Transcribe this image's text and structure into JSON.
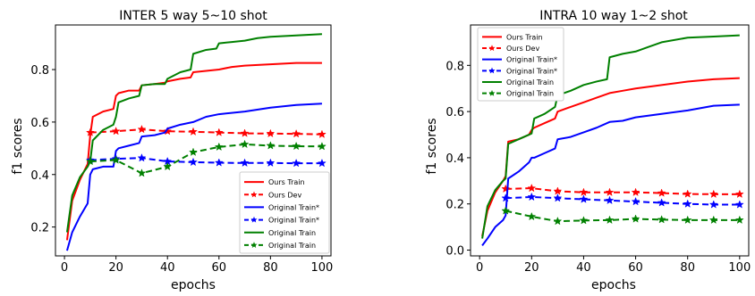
{
  "chart_data": [
    {
      "type": "line",
      "title": "INTER 5 way 5~10 shot",
      "xlabel": "epochs",
      "ylabel": "f1 scores",
      "xlim": [
        -3.5,
        103.5
      ],
      "ylim": [
        0.09,
        0.97
      ],
      "xticks": [
        0,
        20,
        40,
        60,
        80,
        100
      ],
      "yticks": [
        0.2,
        0.4,
        0.6,
        0.8
      ],
      "xtick_labels": [
        "0",
        "20",
        "40",
        "60",
        "80",
        "100"
      ],
      "ytick_labels": [
        "0.2",
        "0.4",
        "0.6",
        "0.8"
      ],
      "legend_position": "lower-right",
      "series": [
        {
          "name": "Ours Train",
          "color": "#ff0000",
          "style": "solid",
          "x": [
            1,
            3,
            6,
            9,
            10,
            11,
            15,
            19,
            20,
            21,
            25,
            29,
            30,
            35,
            39,
            40,
            45,
            49,
            50,
            55,
            60,
            65,
            70,
            80,
            90,
            100
          ],
          "y": [
            0.15,
            0.3,
            0.38,
            0.44,
            0.55,
            0.62,
            0.64,
            0.65,
            0.7,
            0.71,
            0.72,
            0.72,
            0.74,
            0.745,
            0.75,
            0.755,
            0.765,
            0.77,
            0.79,
            0.795,
            0.8,
            0.81,
            0.815,
            0.82,
            0.825,
            0.825
          ]
        },
        {
          "name": "Ours Dev",
          "color": "#ff0000",
          "style": "dashed",
          "marker": "star",
          "x": [
            10,
            20,
            30,
            40,
            50,
            60,
            70,
            80,
            90,
            100
          ],
          "y": [
            0.56,
            0.565,
            0.572,
            0.565,
            0.563,
            0.56,
            0.557,
            0.556,
            0.555,
            0.553
          ]
        },
        {
          "name": "Original Train*",
          "color": "#0000ff",
          "style": "solid",
          "x": [
            1,
            3,
            6,
            9,
            10,
            11,
            15,
            19,
            20,
            21,
            25,
            29,
            30,
            35,
            39,
            40,
            45,
            50,
            55,
            60,
            70,
            80,
            90,
            100
          ],
          "y": [
            0.11,
            0.18,
            0.24,
            0.29,
            0.4,
            0.42,
            0.43,
            0.43,
            0.49,
            0.5,
            0.51,
            0.52,
            0.545,
            0.55,
            0.56,
            0.575,
            0.59,
            0.6,
            0.62,
            0.63,
            0.64,
            0.655,
            0.665,
            0.67
          ]
        },
        {
          "name": "Original Train*",
          "color": "#0000ff",
          "style": "dashed",
          "marker": "star",
          "x": [
            10,
            20,
            30,
            40,
            50,
            60,
            70,
            80,
            90,
            100
          ],
          "y": [
            0.455,
            0.46,
            0.463,
            0.45,
            0.447,
            0.445,
            0.444,
            0.444,
            0.443,
            0.443
          ]
        },
        {
          "name": "Original Train",
          "color": "#008000",
          "style": "solid",
          "x": [
            1,
            3,
            6,
            9,
            10,
            11,
            15,
            19,
            20,
            21,
            25,
            29,
            30,
            35,
            39,
            40,
            45,
            49,
            50,
            55,
            59,
            60,
            65,
            70,
            75,
            80,
            90,
            100
          ],
          "y": [
            0.18,
            0.32,
            0.39,
            0.43,
            0.45,
            0.53,
            0.57,
            0.59,
            0.62,
            0.675,
            0.69,
            0.7,
            0.74,
            0.745,
            0.745,
            0.765,
            0.79,
            0.8,
            0.86,
            0.875,
            0.88,
            0.9,
            0.905,
            0.91,
            0.92,
            0.925,
            0.93,
            0.935
          ]
        },
        {
          "name": "Original Train",
          "color": "#008000",
          "style": "dashed",
          "marker": "star",
          "x": [
            10,
            20,
            30,
            40,
            50,
            60,
            70,
            80,
            90,
            100
          ],
          "y": [
            0.45,
            0.455,
            0.405,
            0.43,
            0.485,
            0.505,
            0.515,
            0.51,
            0.508,
            0.507
          ]
        }
      ]
    },
    {
      "type": "line",
      "title": "INTRA 10 way 1~2 shot",
      "xlabel": "epochs",
      "ylabel": "f1 scores",
      "xlim": [
        -3.5,
        103.5
      ],
      "ylim": [
        -0.025,
        0.975
      ],
      "xticks": [
        0,
        20,
        40,
        60,
        80,
        100
      ],
      "yticks": [
        0.0,
        0.2,
        0.4,
        0.6,
        0.8
      ],
      "xtick_labels": [
        "0",
        "20",
        "40",
        "60",
        "80",
        "100"
      ],
      "ytick_labels": [
        "0.0",
        "0.2",
        "0.4",
        "0.6",
        "0.8"
      ],
      "legend_position": "upper-left",
      "series": [
        {
          "name": "Ours Train",
          "color": "#ff0000",
          "style": "solid",
          "x": [
            1,
            3,
            6,
            9,
            10,
            11,
            15,
            19,
            20,
            21,
            25,
            29,
            30,
            35,
            40,
            45,
            50,
            55,
            60,
            70,
            80,
            90,
            100
          ],
          "y": [
            0.06,
            0.17,
            0.25,
            0.3,
            0.32,
            0.47,
            0.48,
            0.5,
            0.52,
            0.53,
            0.55,
            0.57,
            0.6,
            0.62,
            0.64,
            0.66,
            0.68,
            0.69,
            0.7,
            0.715,
            0.73,
            0.74,
            0.745
          ]
        },
        {
          "name": "Ours Dev",
          "color": "#ff0000",
          "style": "dashed",
          "marker": "star",
          "x": [
            10,
            20,
            30,
            40,
            50,
            60,
            70,
            80,
            90,
            100
          ],
          "y": [
            0.265,
            0.268,
            0.255,
            0.25,
            0.25,
            0.25,
            0.247,
            0.243,
            0.242,
            0.242
          ]
        },
        {
          "name": "Original Train*",
          "color": "#0000ff",
          "style": "solid",
          "x": [
            1,
            3,
            6,
            9,
            10,
            11,
            15,
            19,
            20,
            21,
            25,
            29,
            30,
            35,
            40,
            45,
            50,
            55,
            60,
            70,
            80,
            90,
            100
          ],
          "y": [
            0.02,
            0.05,
            0.1,
            0.13,
            0.15,
            0.31,
            0.34,
            0.38,
            0.4,
            0.4,
            0.42,
            0.44,
            0.48,
            0.49,
            0.51,
            0.53,
            0.555,
            0.56,
            0.575,
            0.59,
            0.605,
            0.625,
            0.63
          ]
        },
        {
          "name": "Original Train*",
          "color": "#0000ff",
          "style": "dashed",
          "marker": "star",
          "x": [
            10,
            20,
            30,
            40,
            50,
            60,
            70,
            80,
            90,
            100
          ],
          "y": [
            0.225,
            0.23,
            0.225,
            0.22,
            0.215,
            0.21,
            0.205,
            0.2,
            0.197,
            0.197
          ]
        },
        {
          "name": "Original Train",
          "color": "#008000",
          "style": "solid",
          "x": [
            1,
            3,
            6,
            9,
            10,
            11,
            15,
            19,
            20,
            21,
            25,
            29,
            30,
            35,
            40,
            45,
            49,
            50,
            55,
            60,
            65,
            70,
            80,
            90,
            100
          ],
          "y": [
            0.05,
            0.19,
            0.26,
            0.3,
            0.31,
            0.46,
            0.48,
            0.5,
            0.505,
            0.57,
            0.59,
            0.62,
            0.67,
            0.69,
            0.715,
            0.73,
            0.74,
            0.835,
            0.85,
            0.86,
            0.88,
            0.9,
            0.92,
            0.925,
            0.93
          ]
        },
        {
          "name": "Original Train",
          "color": "#008000",
          "style": "dashed",
          "marker": "star",
          "x": [
            10,
            20,
            30,
            40,
            50,
            60,
            70,
            80,
            90,
            100
          ],
          "y": [
            0.17,
            0.145,
            0.125,
            0.128,
            0.13,
            0.135,
            0.132,
            0.13,
            0.13,
            0.13
          ]
        }
      ]
    }
  ]
}
